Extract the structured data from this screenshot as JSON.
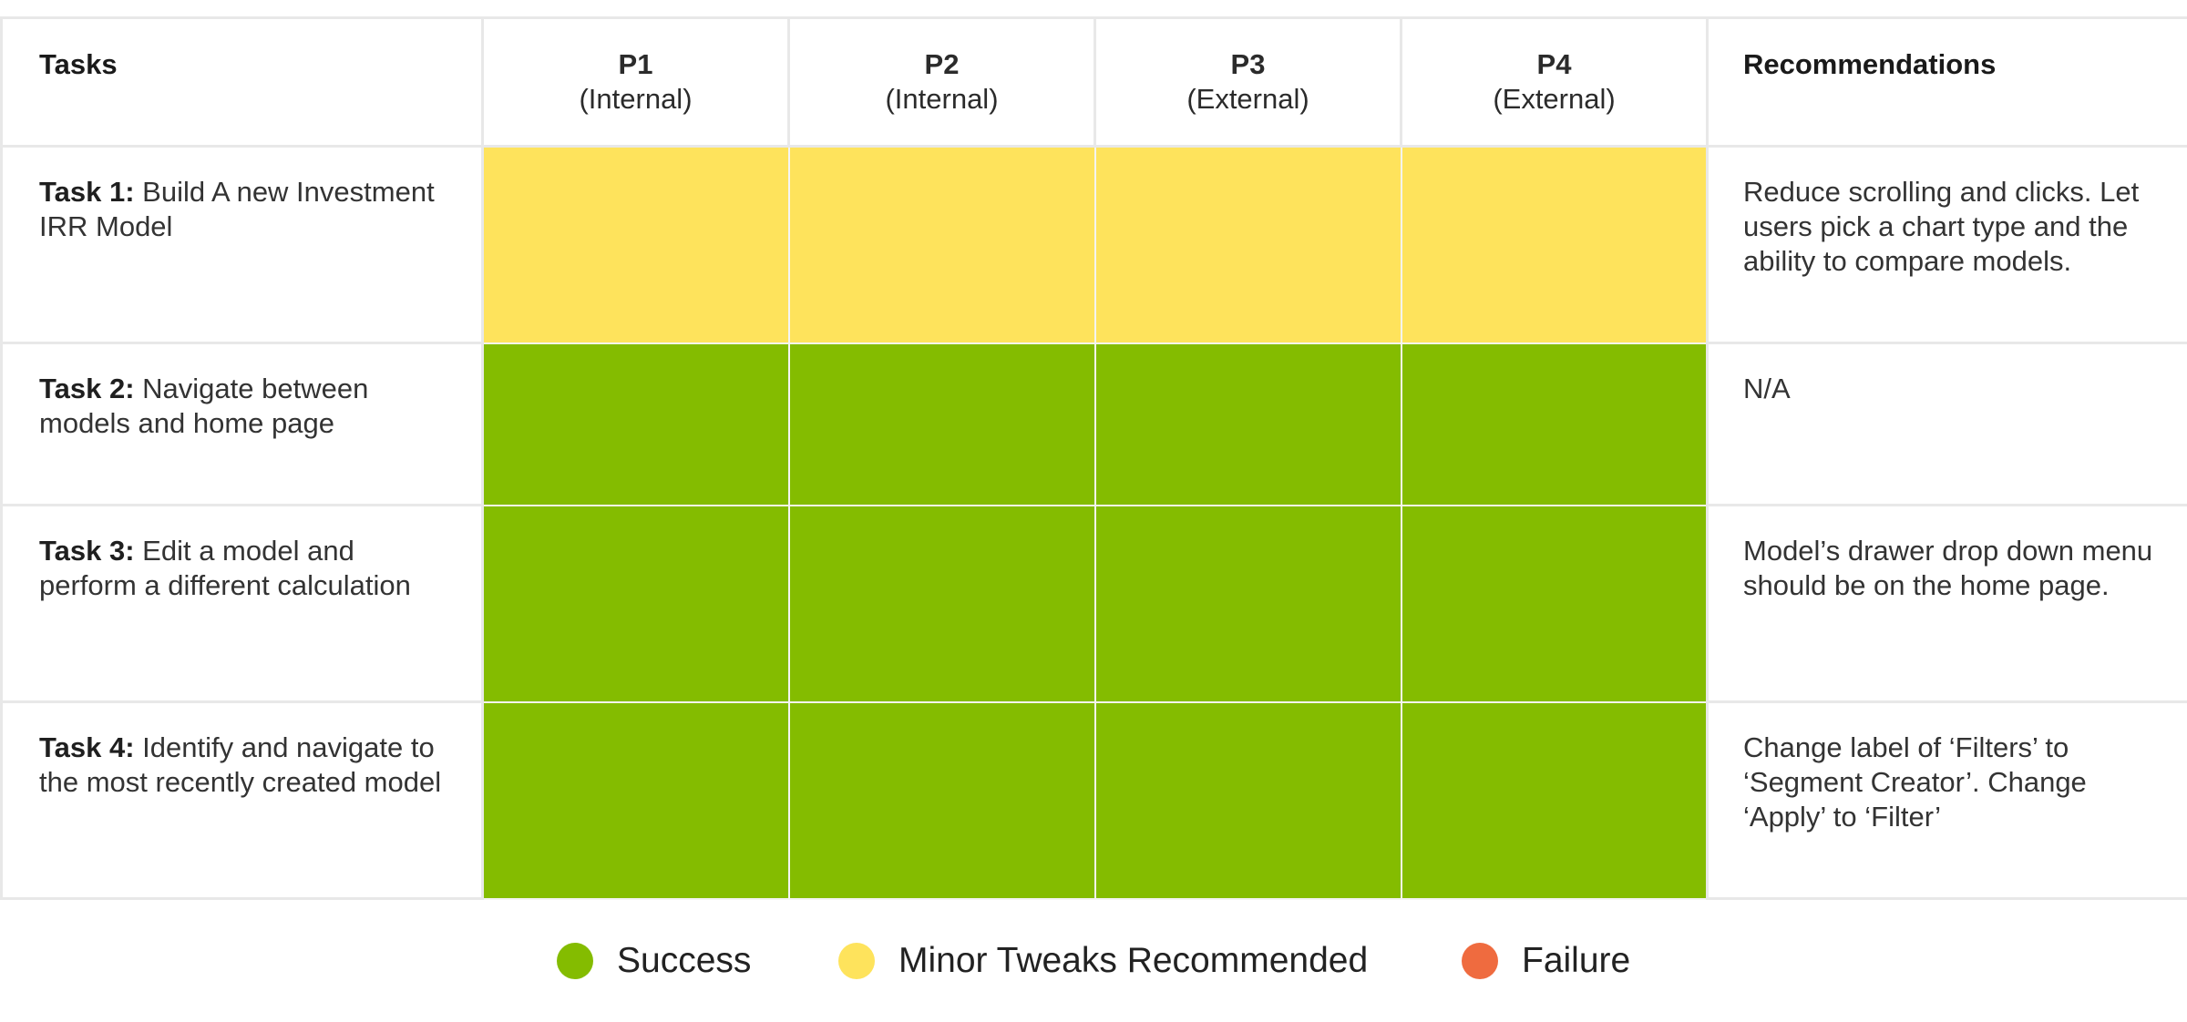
{
  "colors": {
    "success": "#84bc00",
    "minor": "#fee35c",
    "failure": "#ef6b3f",
    "border": "#e8e8e8"
  },
  "header": {
    "tasks": "Tasks",
    "recommendations": "Recommendations",
    "participants": [
      {
        "id": "P1",
        "type": "(Internal)"
      },
      {
        "id": "P2",
        "type": "(Internal)"
      },
      {
        "id": "P3",
        "type": "(External)"
      },
      {
        "id": "P4",
        "type": "(External)"
      }
    ]
  },
  "rows": [
    {
      "label": "Task 1:",
      "text": " Build A new Investment IRR Model",
      "statuses": [
        "minor",
        "minor",
        "minor",
        "minor"
      ],
      "recommendation": "Reduce scrolling and clicks. Let users pick a chart type and the ability to compare models."
    },
    {
      "label": "Task 2:",
      "text": " Navigate between models and home page",
      "statuses": [
        "success",
        "success",
        "success",
        "success"
      ],
      "recommendation": "N/A"
    },
    {
      "label": "Task 3:",
      "text": " Edit a model and perform a different calculation",
      "statuses": [
        "success",
        "success",
        "success",
        "success"
      ],
      "recommendation": "Model’s drawer drop down menu should be on the home page."
    },
    {
      "label": "Task 4:",
      "text": " Identify and navigate to the most recently created model",
      "statuses": [
        "success",
        "success",
        "success",
        "success"
      ],
      "recommendation": "Change label of ‘Filters’ to ‘Segment Creator’. Change ‘Apply’ to ‘Filter’"
    }
  ],
  "legend": [
    {
      "key": "success",
      "label": "Success"
    },
    {
      "key": "minor",
      "label": "Minor Tweaks Recommended"
    },
    {
      "key": "failure",
      "label": "Failure"
    }
  ]
}
